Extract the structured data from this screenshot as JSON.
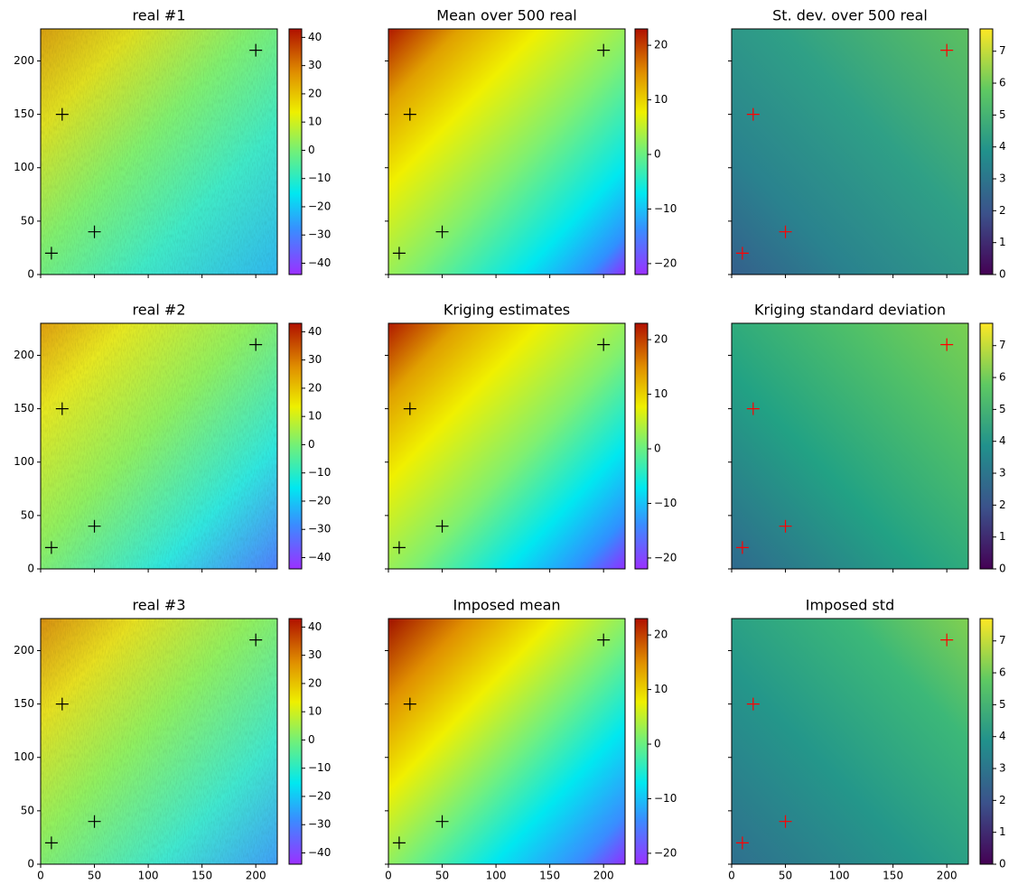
{
  "chart_data": [
    {
      "type": "heatmap",
      "title": "real #1",
      "xlim": [
        0,
        220
      ],
      "ylim": [
        0,
        230
      ],
      "xticks": [
        0,
        50,
        100,
        150,
        200
      ],
      "yticks": [
        0,
        50,
        100,
        150,
        200
      ],
      "show_xticklabels": false,
      "show_yticklabels": true,
      "cmap": "rainbow",
      "clim": [
        -44,
        43
      ],
      "cticks": [
        {
          "value": -40,
          "label": "−40"
        },
        {
          "value": -30,
          "label": "−30"
        },
        {
          "value": -20,
          "label": "−20"
        },
        {
          "value": -10,
          "label": "−10"
        },
        0,
        10,
        20,
        30,
        40
      ],
      "points": {
        "x": [
          10,
          20,
          50,
          200
        ],
        "y": [
          20,
          150,
          40,
          210
        ],
        "color": "#000000"
      }
    },
    {
      "type": "heatmap",
      "title": "Mean over 500 real",
      "xlim": [
        0,
        220
      ],
      "ylim": [
        0,
        230
      ],
      "xticks": [
        0,
        50,
        100,
        150,
        200
      ],
      "yticks": [
        0,
        50,
        100,
        150,
        200
      ],
      "show_xticklabels": false,
      "show_yticklabels": false,
      "cmap": "rainbow",
      "clim": [
        -22,
        23
      ],
      "cticks": [
        {
          "value": -20,
          "label": "−20"
        },
        {
          "value": -10,
          "label": "−10"
        },
        0,
        10,
        20
      ],
      "points": {
        "x": [
          10,
          20,
          50,
          200
        ],
        "y": [
          20,
          150,
          40,
          210
        ],
        "color": "#000000"
      }
    },
    {
      "type": "heatmap",
      "title": "St. dev. over 500 real",
      "xlim": [
        0,
        220
      ],
      "ylim": [
        0,
        230
      ],
      "xticks": [
        0,
        50,
        100,
        150,
        200
      ],
      "yticks": [
        0,
        50,
        100,
        150,
        200
      ],
      "show_xticklabels": false,
      "show_yticklabels": false,
      "cmap": "viridis",
      "clim": [
        0,
        7.7
      ],
      "cticks": [
        0,
        1,
        2,
        3,
        4,
        5,
        6,
        7
      ],
      "points": {
        "x": [
          10,
          20,
          50,
          200
        ],
        "y": [
          20,
          150,
          40,
          210
        ],
        "color": "#ff0000"
      }
    },
    {
      "type": "heatmap",
      "title": "real #2",
      "xlim": [
        0,
        220
      ],
      "ylim": [
        0,
        230
      ],
      "xticks": [
        0,
        50,
        100,
        150,
        200
      ],
      "yticks": [
        0,
        50,
        100,
        150,
        200
      ],
      "show_xticklabels": false,
      "show_yticklabels": true,
      "cmap": "rainbow",
      "clim": [
        -44,
        43
      ],
      "cticks": [
        {
          "value": -40,
          "label": "−40"
        },
        {
          "value": -30,
          "label": "−30"
        },
        {
          "value": -20,
          "label": "−20"
        },
        {
          "value": -10,
          "label": "−10"
        },
        0,
        10,
        20,
        30,
        40
      ],
      "points": {
        "x": [
          10,
          20,
          50,
          200
        ],
        "y": [
          20,
          150,
          40,
          210
        ],
        "color": "#000000"
      }
    },
    {
      "type": "heatmap",
      "title": "Kriging estimates",
      "xlim": [
        0,
        220
      ],
      "ylim": [
        0,
        230
      ],
      "xticks": [
        0,
        50,
        100,
        150,
        200
      ],
      "yticks": [
        0,
        50,
        100,
        150,
        200
      ],
      "show_xticklabels": false,
      "show_yticklabels": false,
      "cmap": "rainbow",
      "clim": [
        -22,
        23
      ],
      "cticks": [
        {
          "value": -20,
          "label": "−20"
        },
        {
          "value": -10,
          "label": "−10"
        },
        0,
        10,
        20
      ],
      "points": {
        "x": [
          10,
          20,
          50,
          200
        ],
        "y": [
          20,
          150,
          40,
          210
        ],
        "color": "#000000"
      }
    },
    {
      "type": "heatmap",
      "title": "Kriging standard deviation",
      "xlim": [
        0,
        220
      ],
      "ylim": [
        0,
        230
      ],
      "xticks": [
        0,
        50,
        100,
        150,
        200
      ],
      "yticks": [
        0,
        50,
        100,
        150,
        200
      ],
      "show_xticklabels": false,
      "show_yticklabels": false,
      "cmap": "viridis",
      "clim": [
        0,
        7.7
      ],
      "cticks": [
        0,
        1,
        2,
        3,
        4,
        5,
        6,
        7
      ],
      "points": {
        "x": [
          10,
          20,
          50,
          200
        ],
        "y": [
          20,
          150,
          40,
          210
        ],
        "color": "#ff0000"
      }
    },
    {
      "type": "heatmap",
      "title": "real #3",
      "xlim": [
        0,
        220
      ],
      "ylim": [
        0,
        230
      ],
      "xticks": [
        0,
        50,
        100,
        150,
        200
      ],
      "yticks": [
        0,
        50,
        100,
        150,
        200
      ],
      "show_xticklabels": true,
      "show_yticklabels": true,
      "cmap": "rainbow",
      "clim": [
        -44,
        43
      ],
      "cticks": [
        {
          "value": -40,
          "label": "−40"
        },
        {
          "value": -30,
          "label": "−30"
        },
        {
          "value": -20,
          "label": "−20"
        },
        {
          "value": -10,
          "label": "−10"
        },
        0,
        10,
        20,
        30,
        40
      ],
      "points": {
        "x": [
          10,
          20,
          50,
          200
        ],
        "y": [
          20,
          150,
          40,
          210
        ],
        "color": "#000000"
      }
    },
    {
      "type": "heatmap",
      "title": "Imposed mean",
      "xlim": [
        0,
        220
      ],
      "ylim": [
        0,
        230
      ],
      "xticks": [
        0,
        50,
        100,
        150,
        200
      ],
      "yticks": [
        0,
        50,
        100,
        150,
        200
      ],
      "show_xticklabels": true,
      "show_yticklabels": false,
      "cmap": "rainbow",
      "clim": [
        -22,
        23
      ],
      "cticks": [
        {
          "value": -20,
          "label": "−20"
        },
        {
          "value": -10,
          "label": "−10"
        },
        0,
        10,
        20
      ],
      "points": {
        "x": [
          10,
          20,
          50,
          200
        ],
        "y": [
          20,
          150,
          40,
          210
        ],
        "color": "#000000"
      }
    },
    {
      "type": "heatmap",
      "title": "Imposed std",
      "xlim": [
        0,
        220
      ],
      "ylim": [
        0,
        230
      ],
      "xticks": [
        0,
        50,
        100,
        150,
        200
      ],
      "yticks": [
        0,
        50,
        100,
        150,
        200
      ],
      "show_xticklabels": true,
      "show_yticklabels": false,
      "cmap": "viridis",
      "clim": [
        0,
        7.7
      ],
      "cticks": [
        0,
        1,
        2,
        3,
        4,
        5,
        6,
        7
      ],
      "points": {
        "x": [
          10,
          20,
          50,
          200
        ],
        "y": [
          20,
          150,
          40,
          210
        ],
        "color": "#ff0000"
      }
    }
  ]
}
